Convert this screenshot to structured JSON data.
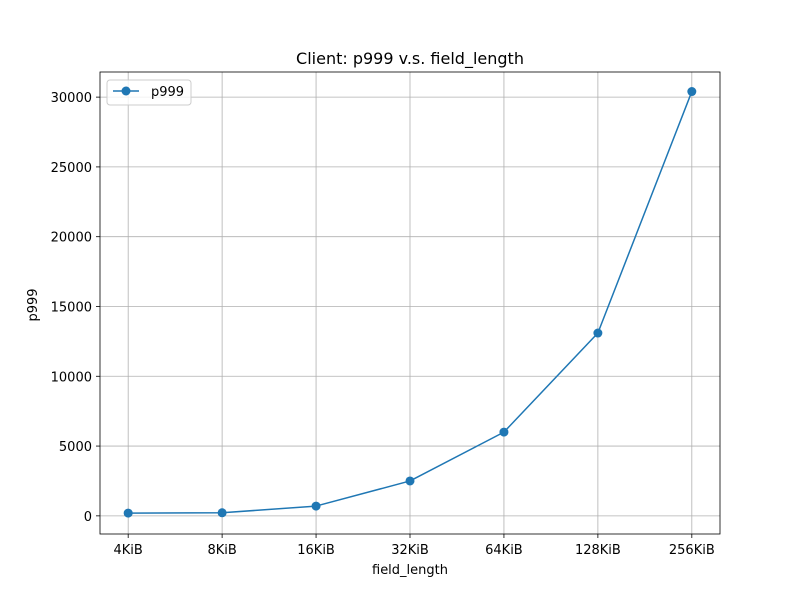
{
  "chart_data": {
    "type": "line",
    "title": "Client: p999 v.s. field_length",
    "xlabel": "field_length",
    "ylabel": "p999",
    "categories": [
      "4KiB",
      "8KiB",
      "16KiB",
      "32KiB",
      "64KiB",
      "128KiB",
      "256KiB"
    ],
    "series": [
      {
        "name": "p999",
        "values": [
          200,
          220,
          700,
          2500,
          6000,
          13100,
          30400
        ],
        "color": "#1f77b4",
        "marker": "circle"
      }
    ],
    "ylim": [
      -1300,
      31800
    ],
    "yticks": [
      0,
      5000,
      10000,
      15000,
      20000,
      25000,
      30000
    ],
    "grid": true,
    "legend": "upper left"
  }
}
